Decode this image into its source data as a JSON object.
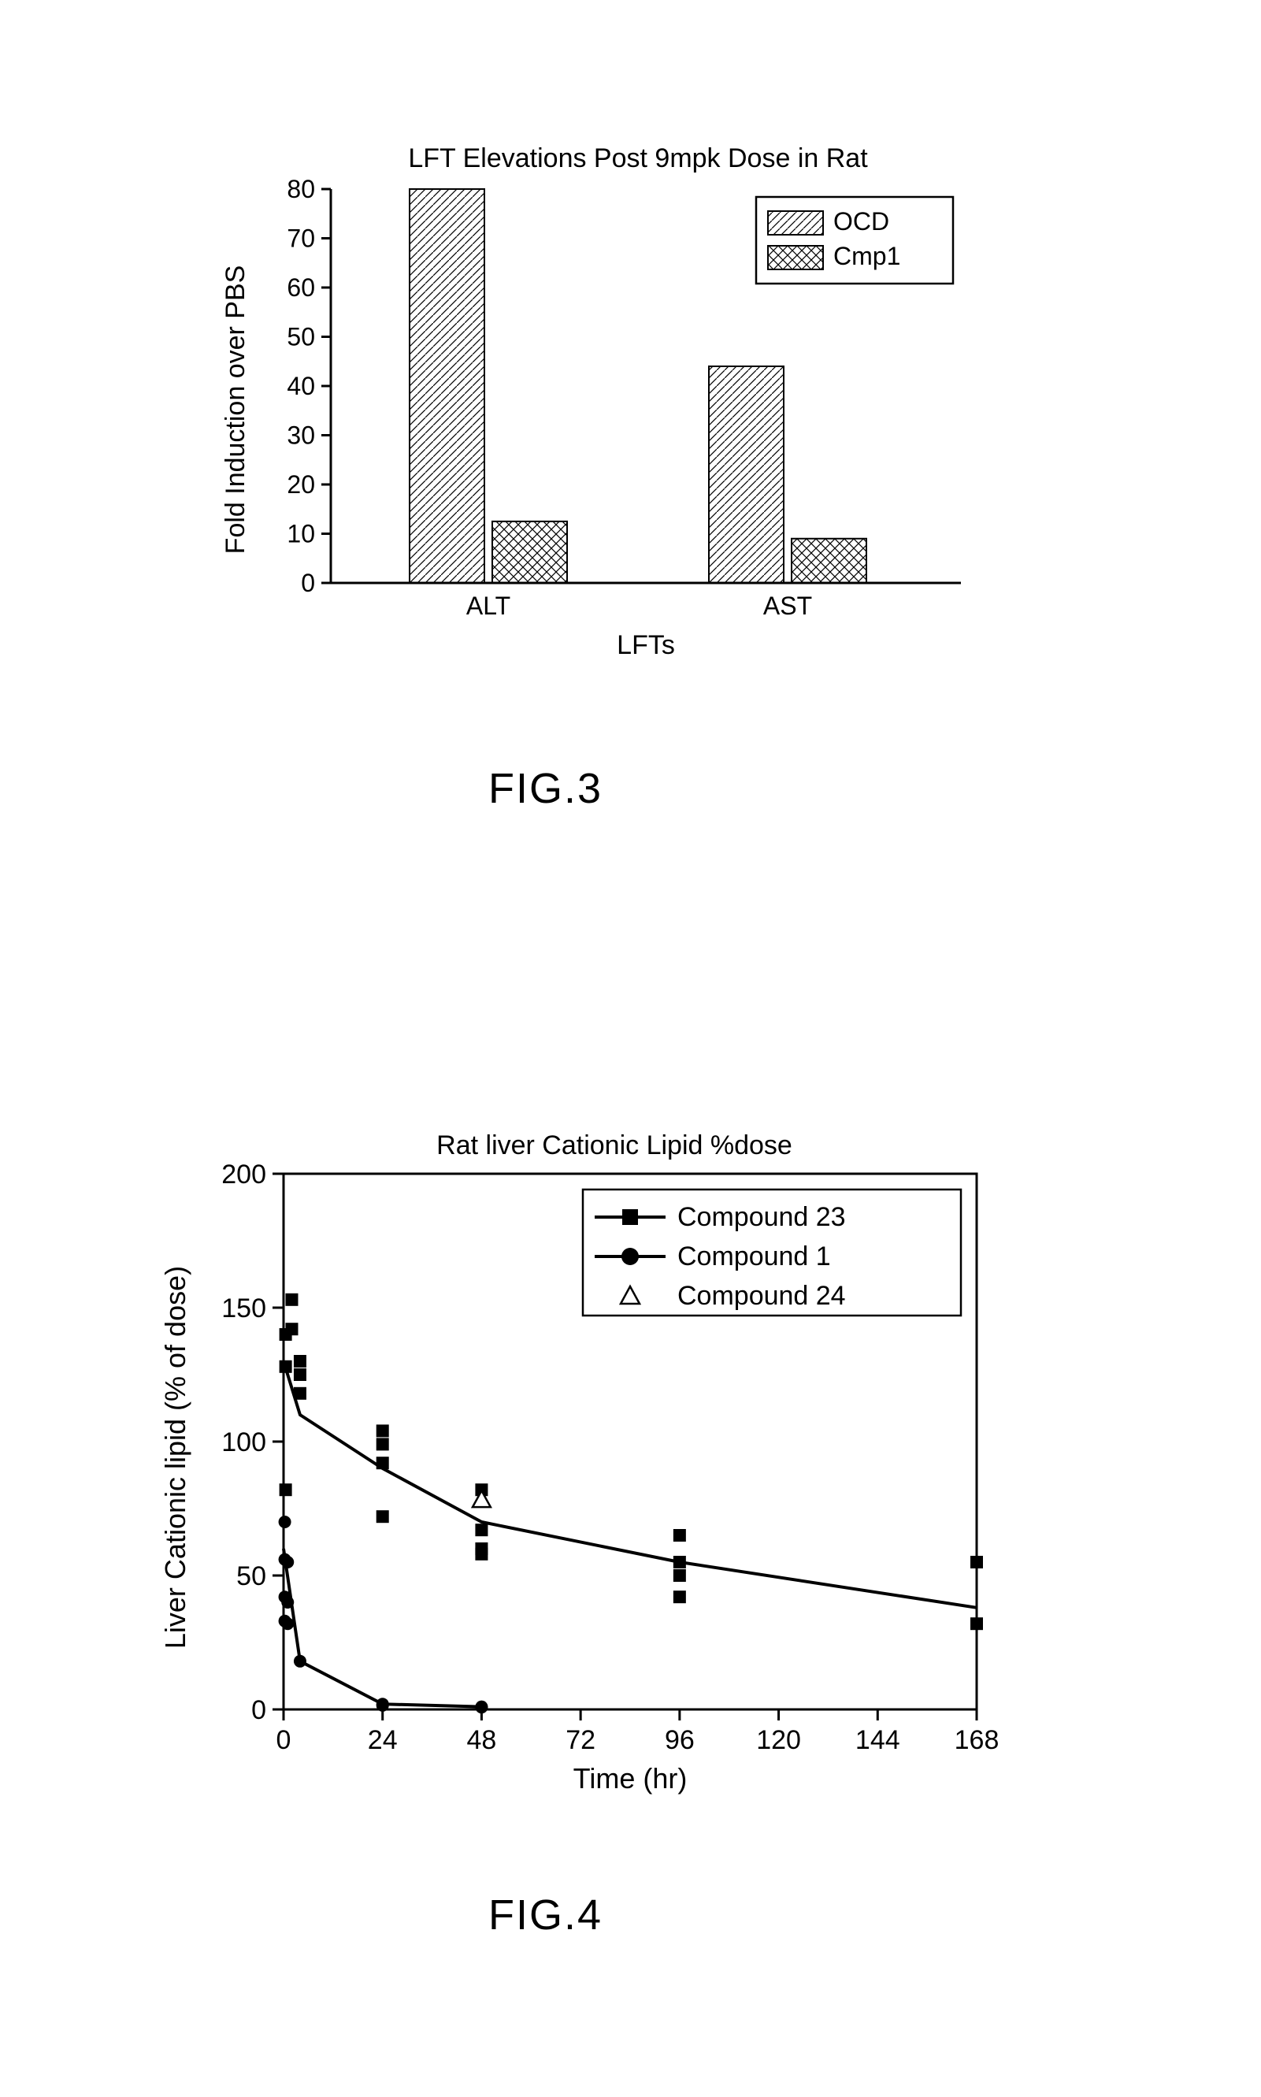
{
  "fig3": {
    "type": "bar",
    "title": "LFT Elevations Post 9mpk Dose in Rat",
    "title_fontsize": 34,
    "ylabel": "Fold Induction over PBS",
    "xlabel": "LFTs",
    "label_fontsize": 34,
    "tick_fontsize": 32,
    "categories": [
      "ALT",
      "AST"
    ],
    "series": [
      {
        "name": "OCD",
        "values": [
          80,
          44
        ],
        "pattern": "diag"
      },
      {
        "name": "Cmp1",
        "values": [
          12.5,
          9
        ],
        "pattern": "cross"
      }
    ],
    "ylim": [
      0,
      80
    ],
    "ytick_step": 10,
    "colors": {
      "axis": "#000000",
      "bar_stroke": "#000000",
      "background": "#ffffff",
      "legend_stroke": "#000000"
    },
    "bar_width": 0.38,
    "caption": "FIG.3"
  },
  "fig4": {
    "type": "scatter-line",
    "title": "Rat liver Cationic Lipid %dose",
    "title_fontsize": 34,
    "ylabel": "Liver Cationic lipid (% of dose)",
    "xlabel": "Time (hr)",
    "label_fontsize": 36,
    "tick_fontsize": 34,
    "xlim": [
      0,
      168
    ],
    "ylim": [
      0,
      200
    ],
    "xticks": [
      0,
      24,
      48,
      72,
      96,
      120,
      144,
      168
    ],
    "yticks": [
      0,
      50,
      100,
      150,
      200
    ],
    "series": [
      {
        "name": "Compound 23",
        "marker": "square-filled",
        "line_visible": true,
        "line_width": 4,
        "points": [
          [
            0.5,
            140
          ],
          [
            0.5,
            128
          ],
          [
            0.5,
            82
          ],
          [
            2,
            153
          ],
          [
            2,
            142
          ],
          [
            4,
            130
          ],
          [
            4,
            125
          ],
          [
            4,
            118
          ],
          [
            24,
            104
          ],
          [
            24,
            99
          ],
          [
            24,
            92
          ],
          [
            24,
            72
          ],
          [
            48,
            82
          ],
          [
            48,
            67
          ],
          [
            48,
            60
          ],
          [
            48,
            58
          ],
          [
            96,
            65
          ],
          [
            96,
            55
          ],
          [
            96,
            50
          ],
          [
            96,
            42
          ],
          [
            168,
            55
          ],
          [
            168,
            32
          ]
        ],
        "trend": [
          [
            0,
            130
          ],
          [
            4,
            110
          ],
          [
            24,
            90
          ],
          [
            48,
            70
          ],
          [
            96,
            55
          ],
          [
            168,
            38
          ]
        ]
      },
      {
        "name": "Compound 1",
        "marker": "circle-filled",
        "line_visible": true,
        "line_width": 4,
        "points": [
          [
            0.3,
            70
          ],
          [
            0.3,
            56
          ],
          [
            0.3,
            42
          ],
          [
            0.3,
            33
          ],
          [
            1,
            55
          ],
          [
            1,
            40
          ],
          [
            1,
            32
          ],
          [
            4,
            18
          ],
          [
            24,
            2
          ],
          [
            24,
            1.5
          ],
          [
            48,
            1
          ],
          [
            48,
            0.8
          ]
        ],
        "trend": [
          [
            0,
            60
          ],
          [
            4,
            18
          ],
          [
            24,
            2
          ],
          [
            48,
            1
          ]
        ]
      },
      {
        "name": "Compound 24",
        "marker": "triangle-open",
        "line_visible": false,
        "points": [
          [
            48,
            78
          ]
        ]
      }
    ],
    "colors": {
      "axis": "#000000",
      "series": "#000000",
      "background": "#ffffff"
    },
    "marker_size": 16,
    "caption": "FIG.4"
  }
}
